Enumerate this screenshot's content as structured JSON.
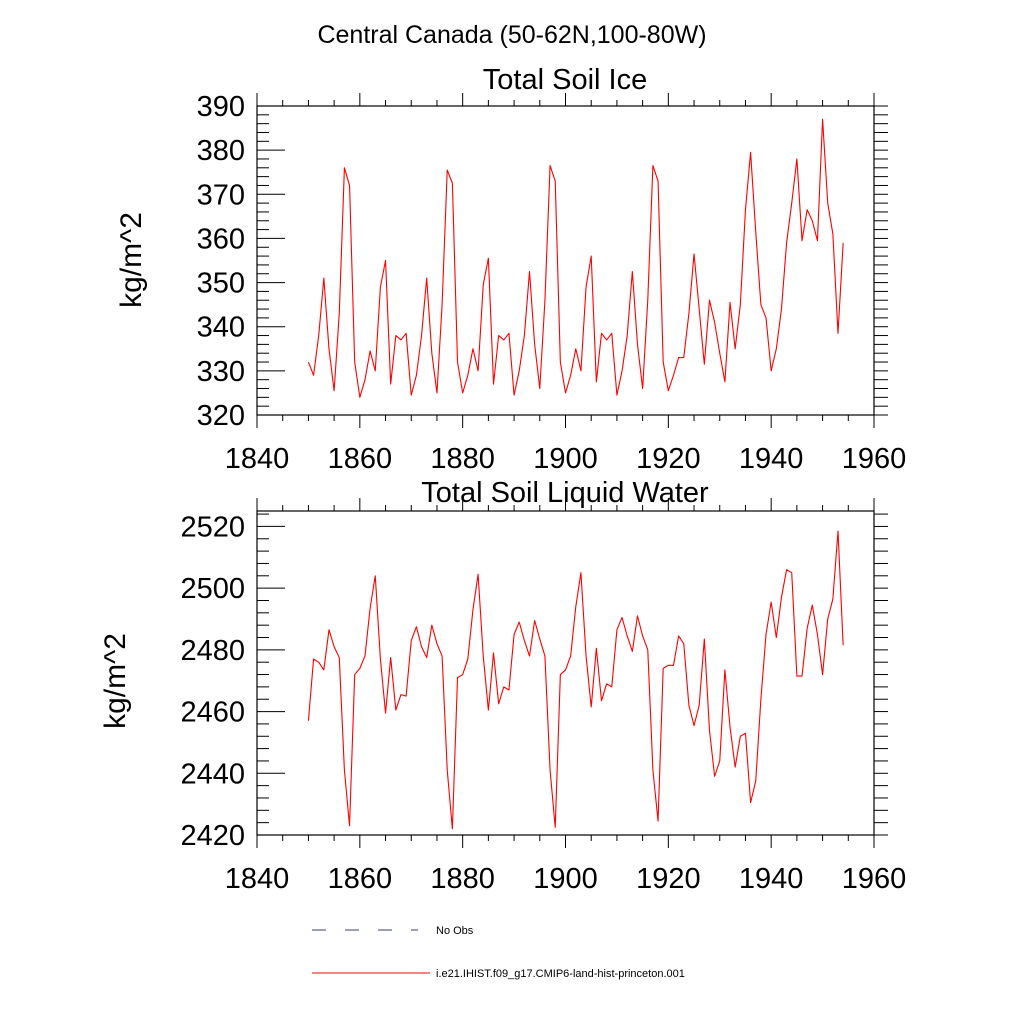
{
  "page_title": "Central Canada (50-62N,100-80W)",
  "colors": {
    "series": "#ff0000",
    "obs": "#3a3f7a",
    "axis": "#000000"
  },
  "legend": [
    {
      "label": "No Obs",
      "style": "dashed",
      "color": "#3a3f7a"
    },
    {
      "label": "i.e21.IHIST.f09_g17.CMIP6-land-hist-princeton.001",
      "style": "solid",
      "color": "#ff0000"
    }
  ],
  "chart_data": [
    {
      "type": "line",
      "title": "Total Soil Ice",
      "ylabel": "kg/m^2",
      "xlim": [
        1840,
        1960
      ],
      "ylim": [
        320,
        390
      ],
      "xticks": [
        1840,
        1860,
        1880,
        1900,
        1920,
        1940,
        1960
      ],
      "yticks": [
        320,
        330,
        340,
        350,
        360,
        370,
        380,
        390
      ],
      "x_start": 1850,
      "series": [
        {
          "values": [
            332,
            329,
            338,
            351,
            335,
            325.5,
            343,
            376,
            372,
            332,
            324,
            328,
            334.5,
            330,
            349,
            355,
            327,
            338,
            337,
            338.5,
            324.5,
            329,
            338,
            351,
            334,
            325,
            345,
            375.5,
            372.5,
            332,
            325,
            329,
            335,
            330,
            349.5,
            355.5,
            327,
            338,
            337,
            338.5,
            324.5,
            330,
            338,
            352.5,
            336,
            326,
            346,
            376.5,
            373,
            332,
            325,
            329,
            335,
            330,
            349,
            356,
            327.5,
            338.5,
            337,
            338.5,
            324.5,
            330,
            338,
            352.5,
            336,
            326,
            346,
            376.5,
            373,
            332,
            325.5,
            329,
            333,
            333,
            343,
            356.5,
            344,
            331.5,
            346,
            341,
            334,
            327.5,
            345.5,
            335,
            345,
            366.5,
            379.5,
            361.5,
            345,
            342,
            330,
            335,
            344,
            359,
            368,
            378,
            359.5,
            366.5,
            364,
            359.5,
            387,
            368,
            361,
            338.5,
            359
          ]
        }
      ]
    },
    {
      "type": "line",
      "title": "Total Soil Liquid Water",
      "ylabel": "kg/m^2",
      "xlim": [
        1840,
        1960
      ],
      "ylim": [
        2420,
        2525
      ],
      "xticks": [
        1840,
        1860,
        1880,
        1900,
        1920,
        1940,
        1960
      ],
      "yticks": [
        2420,
        2440,
        2460,
        2480,
        2500,
        2520
      ],
      "x_start": 1850,
      "series": [
        {
          "values": [
            2457,
            2477,
            2476,
            2473.5,
            2486.5,
            2481,
            2477.5,
            2441,
            2423,
            2472,
            2474,
            2478,
            2493.5,
            2504,
            2477,
            2459.5,
            2477.5,
            2460.5,
            2465.5,
            2465,
            2483,
            2487.5,
            2481,
            2477.5,
            2488,
            2482,
            2478,
            2441,
            2422,
            2471,
            2472,
            2477,
            2493,
            2504.5,
            2478,
            2460.5,
            2479,
            2462.5,
            2468,
            2467,
            2485,
            2489,
            2483,
            2478,
            2489.5,
            2483.5,
            2478,
            2441,
            2422.5,
            2472,
            2473.5,
            2478,
            2494,
            2505,
            2478,
            2461.5,
            2480.5,
            2463.5,
            2469,
            2468,
            2486.5,
            2490.5,
            2484.5,
            2479.5,
            2491,
            2484.5,
            2480,
            2441,
            2424.5,
            2474,
            2475,
            2475,
            2484.5,
            2482,
            2462,
            2455.5,
            2462,
            2483.5,
            2454,
            2439,
            2444,
            2473.5,
            2455,
            2442,
            2452,
            2453,
            2430.5,
            2437.5,
            2464,
            2485,
            2495.5,
            2484,
            2497,
            2506,
            2505,
            2471.5,
            2471.5,
            2487,
            2494.5,
            2485,
            2472,
            2490,
            2496.5,
            2518.5,
            2481.5
          ]
        }
      ]
    }
  ]
}
